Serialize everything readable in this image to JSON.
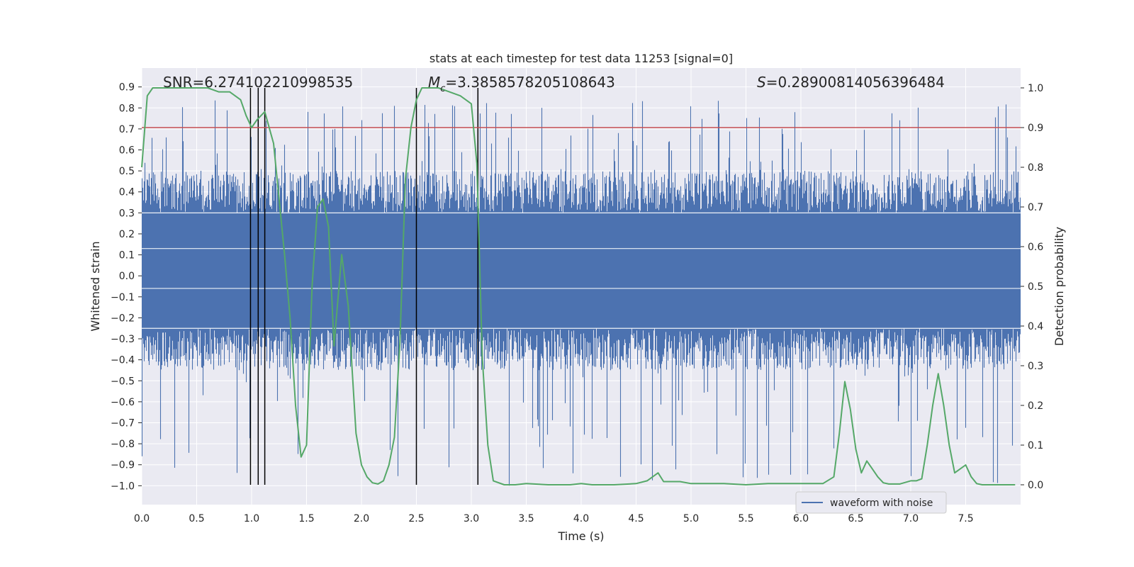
{
  "chart_data": {
    "type": "line",
    "title": "stats at each timestep for test data 11253 [signal=0]",
    "xlabel": "Time (s)",
    "ylabel_left": "Whitened strain",
    "ylabel_right": "Detection probability",
    "xlim": [
      0.0,
      8.0
    ],
    "ylim_left": [
      -1.09,
      0.99
    ],
    "ylim_right": [
      -0.05,
      1.05
    ],
    "x_ticks": [
      "0.0",
      "0.5",
      "1.0",
      "1.5",
      "2.0",
      "2.5",
      "3.0",
      "3.5",
      "4.0",
      "4.5",
      "5.0",
      "5.5",
      "6.0",
      "6.5",
      "7.0",
      "7.5"
    ],
    "y_left_ticks": [
      "0.9",
      "0.8",
      "0.7",
      "0.6",
      "0.5",
      "0.4",
      "0.3",
      "0.2",
      "0.1",
      "0.0",
      "-0.1",
      "-0.2",
      "-0.3",
      "-0.4",
      "-0.5",
      "-0.6",
      "-0.7",
      "-0.8",
      "-0.9",
      "-1.0"
    ],
    "y_right_ticks": [
      "1.0",
      "0.9",
      "0.8",
      "0.7",
      "0.6",
      "0.5",
      "0.4",
      "0.3",
      "0.2",
      "0.1",
      "0.0"
    ],
    "grid": true,
    "annotations": {
      "snr": "SNR=6.274102210998535",
      "mc_symbol": "M",
      "mc_sub": "c",
      "mc_value": "=3.3858578205108643",
      "s_symbol": "S",
      "s_value": "=0.28900814056396484"
    },
    "threshold": {
      "value": 0.9,
      "axis": "right",
      "color": "#c44e52"
    },
    "vertical_markers_x": [
      0.99,
      1.06,
      1.12,
      2.5,
      3.06
    ],
    "legend": {
      "label": "waveform with noise",
      "position": "lower right"
    },
    "series": [
      {
        "name": "waveform with noise",
        "axis": "left",
        "color": "#4c72b0",
        "kind": "noise",
        "band_low": -0.25,
        "band_high": 0.3,
        "peak_high": 0.84,
        "peak_low": -1.0
      },
      {
        "name": "Detection probability",
        "axis": "right",
        "color": "#55a868",
        "x": [
          0.0,
          0.05,
          0.1,
          0.2,
          0.4,
          0.6,
          0.7,
          0.8,
          0.9,
          0.95,
          1.0,
          1.05,
          1.12,
          1.2,
          1.3,
          1.35,
          1.4,
          1.45,
          1.5,
          1.55,
          1.6,
          1.65,
          1.7,
          1.75,
          1.82,
          1.88,
          1.95,
          2.0,
          2.05,
          2.1,
          2.15,
          2.2,
          2.25,
          2.3,
          2.35,
          2.4,
          2.45,
          2.5,
          2.55,
          2.6,
          2.65,
          2.7,
          2.8,
          2.9,
          3.0,
          3.05,
          3.1,
          3.15,
          3.2,
          3.3,
          3.35,
          3.4,
          3.5,
          3.7,
          3.9,
          4.0,
          4.1,
          4.3,
          4.5,
          4.6,
          4.7,
          4.75,
          4.8,
          4.9,
          5.0,
          5.2,
          5.3,
          5.5,
          5.7,
          6.0,
          6.2,
          6.3,
          6.35,
          6.4,
          6.45,
          6.5,
          6.55,
          6.6,
          6.65,
          6.7,
          6.75,
          6.8,
          6.85,
          6.9,
          7.0,
          7.05,
          7.1,
          7.15,
          7.2,
          7.25,
          7.3,
          7.35,
          7.4,
          7.45,
          7.5,
          7.55,
          7.6,
          7.65,
          7.7,
          7.95
        ],
        "values": [
          0.8,
          0.98,
          1.0,
          1.0,
          1.0,
          1.0,
          0.99,
          0.99,
          0.97,
          0.93,
          0.9,
          0.92,
          0.94,
          0.86,
          0.58,
          0.42,
          0.2,
          0.07,
          0.1,
          0.5,
          0.7,
          0.72,
          0.65,
          0.35,
          0.58,
          0.45,
          0.13,
          0.05,
          0.02,
          0.005,
          0.002,
          0.01,
          0.05,
          0.12,
          0.36,
          0.77,
          0.9,
          0.97,
          1.0,
          1.0,
          1.0,
          1.0,
          0.99,
          0.98,
          0.96,
          0.81,
          0.32,
          0.1,
          0.01,
          0.0,
          0.0,
          0.0,
          0.003,
          0.0,
          0.0,
          0.003,
          0.0,
          0.0,
          0.003,
          0.01,
          0.03,
          0.008,
          0.008,
          0.008,
          0.003,
          0.003,
          0.003,
          0.0,
          0.003,
          0.003,
          0.003,
          0.02,
          0.13,
          0.26,
          0.19,
          0.09,
          0.03,
          0.06,
          0.04,
          0.02,
          0.005,
          0.002,
          0.002,
          0.002,
          0.01,
          0.01,
          0.015,
          0.1,
          0.2,
          0.28,
          0.2,
          0.1,
          0.03,
          0.04,
          0.05,
          0.02,
          0.003,
          0.0,
          0.0,
          0.0
        ]
      }
    ]
  }
}
